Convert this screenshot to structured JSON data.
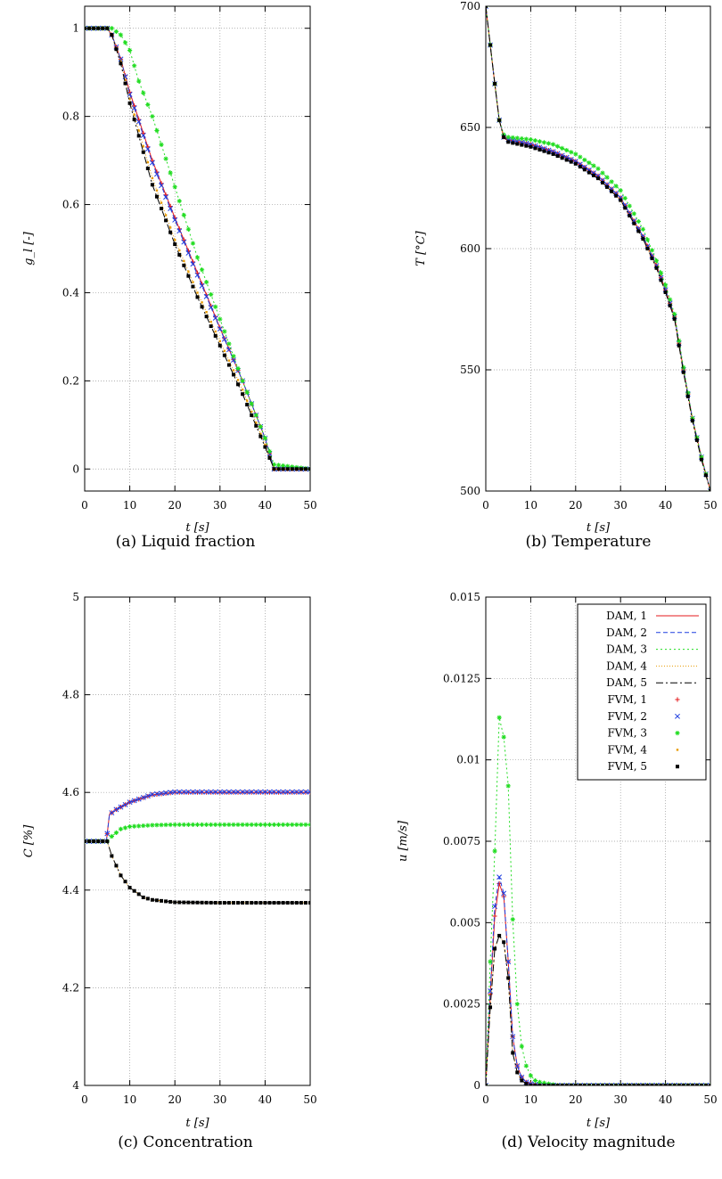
{
  "colors": {
    "s1": "#e41a1c",
    "s2": "#1f3fe0",
    "s3": "#22dd22",
    "s4": "#e89a00",
    "s5": "#000000",
    "grid": "#999999"
  },
  "legend": {
    "placement": "top-right",
    "entries": [
      "DAM, 1",
      "DAM, 2",
      "DAM, 3",
      "DAM, 4",
      "DAM, 5",
      "FVM, 1",
      "FVM, 2",
      "FVM, 3",
      "FVM, 4",
      "FVM, 5"
    ]
  },
  "chart_data": [
    {
      "type": "line",
      "caption": "(a) Liquid fraction",
      "xlabel": "t [s]",
      "ylabel": "g_l [-]",
      "xlim": [
        0,
        50
      ],
      "ylim": [
        -0.05,
        1.05
      ],
      "xticks": [
        "0",
        "10",
        "20",
        "30",
        "40",
        "50"
      ],
      "xtick_values": [
        0,
        10,
        20,
        30,
        40,
        50
      ],
      "yticks": [
        "0",
        "0.2",
        "0.4",
        "0.6",
        "0.8",
        "1"
      ],
      "ytick_values": [
        0,
        0.2,
        0.4,
        0.6,
        0.8,
        1
      ],
      "grid": true,
      "series": [
        {
          "x": [
            0,
            5,
            6,
            8,
            10,
            15,
            20,
            25,
            30,
            35,
            40,
            42,
            50
          ],
          "y": [
            1,
            1,
            0.985,
            0.93,
            0.855,
            0.7,
            0.57,
            0.445,
            0.32,
            0.2,
            0.07,
            0,
            0
          ]
        },
        {
          "x": [
            0,
            5,
            6,
            8,
            10,
            15,
            20,
            25,
            30,
            35,
            40,
            42,
            50
          ],
          "y": [
            1,
            1,
            0.985,
            0.93,
            0.85,
            0.695,
            0.565,
            0.44,
            0.318,
            0.2,
            0.07,
            0,
            0
          ]
        },
        {
          "x": [
            0,
            6,
            8,
            10,
            12,
            15,
            20,
            25,
            30,
            35,
            40,
            42,
            50
          ],
          "y": [
            1,
            1,
            0.985,
            0.95,
            0.88,
            0.8,
            0.64,
            0.48,
            0.34,
            0.2,
            0.07,
            0.01,
            0
          ]
        },
        {
          "x": [
            0,
            5,
            6,
            8,
            10,
            15,
            20,
            25,
            30,
            35,
            40,
            42,
            50
          ],
          "y": [
            1,
            1,
            0.985,
            0.925,
            0.84,
            0.66,
            0.52,
            0.4,
            0.29,
            0.18,
            0.055,
            0,
            0
          ]
        },
        {
          "x": [
            0,
            5,
            6,
            8,
            10,
            15,
            20,
            25,
            30,
            35,
            40,
            42,
            50
          ],
          "y": [
            1,
            1,
            0.985,
            0.92,
            0.83,
            0.645,
            0.51,
            0.39,
            0.28,
            0.17,
            0.05,
            0,
            0
          ]
        }
      ]
    },
    {
      "type": "line",
      "caption": "(b) Temperature",
      "xlabel": "t [s]",
      "ylabel": "T [°C]",
      "xlim": [
        0,
        50
      ],
      "ylim": [
        500,
        700
      ],
      "xticks": [
        "0",
        "10",
        "20",
        "30",
        "40",
        "50"
      ],
      "xtick_values": [
        0,
        10,
        20,
        30,
        40,
        50
      ],
      "yticks": [
        "500",
        "550",
        "600",
        "650",
        "700"
      ],
      "ytick_values": [
        500,
        550,
        600,
        650,
        700
      ],
      "grid": true,
      "series": [
        {
          "x": [
            0,
            1,
            2,
            3,
            4,
            5,
            10,
            15,
            20,
            25,
            30,
            35,
            38,
            40,
            42,
            44,
            46,
            48,
            50
          ],
          "y": [
            700,
            684,
            668,
            653,
            646,
            645,
            643,
            640,
            636,
            630,
            621,
            605,
            593,
            583,
            572,
            550,
            530,
            514,
            500
          ]
        },
        {
          "x": [
            0,
            1,
            2,
            3,
            4,
            5,
            10,
            15,
            20,
            25,
            30,
            35,
            38,
            40,
            42,
            44,
            46,
            48,
            50
          ],
          "y": [
            700,
            684,
            668,
            653,
            646,
            645,
            643,
            640,
            636,
            630,
            621,
            605,
            593,
            583,
            572,
            550,
            530,
            514,
            500
          ]
        },
        {
          "x": [
            0,
            1,
            2,
            3,
            4,
            5,
            10,
            15,
            20,
            25,
            30,
            35,
            38,
            40,
            42,
            44,
            46,
            48,
            50
          ],
          "y": [
            700,
            684,
            668,
            653,
            647,
            646,
            645,
            643,
            639,
            633,
            624,
            608,
            595,
            585,
            573,
            551,
            530,
            514,
            500
          ]
        },
        {
          "x": [
            0,
            1,
            2,
            3,
            4,
            5,
            10,
            15,
            20,
            25,
            30,
            35,
            38,
            40,
            42,
            44,
            46,
            48,
            50
          ],
          "y": [
            700,
            684,
            668,
            653,
            646,
            644,
            642,
            639,
            635,
            629,
            620,
            604,
            592,
            582,
            571,
            549,
            529,
            513,
            500
          ]
        },
        {
          "x": [
            0,
            1,
            2,
            3,
            4,
            5,
            10,
            15,
            20,
            25,
            30,
            35,
            38,
            40,
            42,
            44,
            46,
            48,
            50
          ],
          "y": [
            700,
            684,
            668,
            653,
            646,
            644,
            642,
            639,
            635,
            629,
            620,
            604,
            592,
            582,
            571,
            549,
            529,
            513,
            500
          ]
        }
      ]
    },
    {
      "type": "line",
      "caption": "(c) Concentration",
      "xlabel": "t [s]",
      "ylabel": "C [%]",
      "xlim": [
        0,
        50
      ],
      "ylim": [
        4,
        5
      ],
      "xticks": [
        "0",
        "10",
        "20",
        "30",
        "40",
        "50"
      ],
      "xtick_values": [
        0,
        10,
        20,
        30,
        40,
        50
      ],
      "yticks": [
        "4",
        "4.2",
        "4.4",
        "4.6",
        "4.8",
        "5"
      ],
      "ytick_values": [
        4,
        4.2,
        4.4,
        4.6,
        4.8,
        5
      ],
      "grid": true,
      "series": [
        {
          "x": [
            0,
            4.8,
            5.5,
            7,
            10,
            15,
            20,
            30,
            50
          ],
          "y": [
            4.5,
            4.5,
            4.555,
            4.565,
            4.58,
            4.595,
            4.6,
            4.6,
            4.6
          ]
        },
        {
          "x": [
            0,
            4.8,
            5.5,
            7,
            10,
            15,
            20,
            30,
            50
          ],
          "y": [
            4.5,
            4.5,
            4.555,
            4.565,
            4.58,
            4.596,
            4.601,
            4.601,
            4.601
          ]
        },
        {
          "x": [
            0,
            5,
            6,
            8,
            10,
            15,
            20,
            30,
            50
          ],
          "y": [
            4.5,
            4.5,
            4.51,
            4.525,
            4.53,
            4.533,
            4.534,
            4.534,
            4.534
          ]
        },
        {
          "x": [
            0,
            5,
            6,
            8,
            10,
            13,
            15,
            20,
            30,
            50
          ],
          "y": [
            4.5,
            4.5,
            4.47,
            4.43,
            4.405,
            4.385,
            4.38,
            4.375,
            4.374,
            4.374
          ]
        },
        {
          "x": [
            0,
            5,
            6,
            8,
            10,
            13,
            15,
            20,
            30,
            50
          ],
          "y": [
            4.5,
            4.5,
            4.47,
            4.43,
            4.405,
            4.385,
            4.38,
            4.375,
            4.374,
            4.374
          ]
        }
      ]
    },
    {
      "type": "line",
      "caption": "(d) Velocity magnitude",
      "xlabel": "t [s]",
      "ylabel": "u [m/s]",
      "xlim": [
        0,
        50
      ],
      "ylim": [
        0,
        0.015
      ],
      "xticks": [
        "0",
        "10",
        "20",
        "30",
        "40",
        "50"
      ],
      "xtick_values": [
        0,
        10,
        20,
        30,
        40,
        50
      ],
      "yticks": [
        "0",
        "0.0025",
        "0.005",
        "0.0075",
        "0.01",
        "0.0125",
        "0.015"
      ],
      "ytick_values": [
        0,
        0.0025,
        0.005,
        0.0075,
        0.01,
        0.0125,
        0.015
      ],
      "grid": true,
      "series": [
        {
          "x": [
            0,
            1,
            2,
            3,
            4,
            5,
            6,
            7,
            8,
            9,
            10,
            12,
            15,
            20,
            50
          ],
          "y": [
            0,
            0.0028,
            0.0052,
            0.0062,
            0.0058,
            0.0038,
            0.0015,
            0.0006,
            0.00025,
            0.0001,
            5e-05,
            0,
            0,
            0,
            0
          ]
        },
        {
          "x": [
            0,
            1,
            2,
            3,
            4,
            5,
            6,
            7,
            8,
            9,
            10,
            12,
            15,
            20,
            50
          ],
          "y": [
            0,
            0.0029,
            0.0055,
            0.0064,
            0.0059,
            0.0038,
            0.0015,
            0.0006,
            0.00025,
            0.0001,
            5e-05,
            0,
            0,
            0,
            0
          ]
        },
        {
          "x": [
            0,
            1,
            2,
            3,
            4,
            5,
            6,
            7,
            8,
            9,
            10,
            11,
            12,
            14,
            16,
            20,
            50
          ],
          "y": [
            0,
            0.0038,
            0.0072,
            0.0113,
            0.0107,
            0.0092,
            0.0051,
            0.0025,
            0.0012,
            0.0006,
            0.0003,
            0.00015,
            0.0001,
            5e-05,
            0,
            0,
            0
          ]
        },
        {
          "x": [
            0,
            1,
            2,
            3,
            4,
            5,
            6,
            7,
            8,
            9,
            10,
            12,
            15,
            20,
            50
          ],
          "y": [
            0,
            0.0024,
            0.0042,
            0.0046,
            0.0044,
            0.0033,
            0.001,
            0.0004,
            0.00015,
            5e-05,
            0,
            0,
            0,
            0,
            0
          ]
        },
        {
          "x": [
            0,
            1,
            2,
            3,
            4,
            5,
            6,
            7,
            8,
            9,
            10,
            12,
            15,
            20,
            50
          ],
          "y": [
            0,
            0.0024,
            0.0042,
            0.0046,
            0.0044,
            0.0033,
            0.001,
            0.0004,
            0.00015,
            5e-05,
            0,
            0,
            0,
            0,
            0
          ]
        }
      ]
    }
  ]
}
